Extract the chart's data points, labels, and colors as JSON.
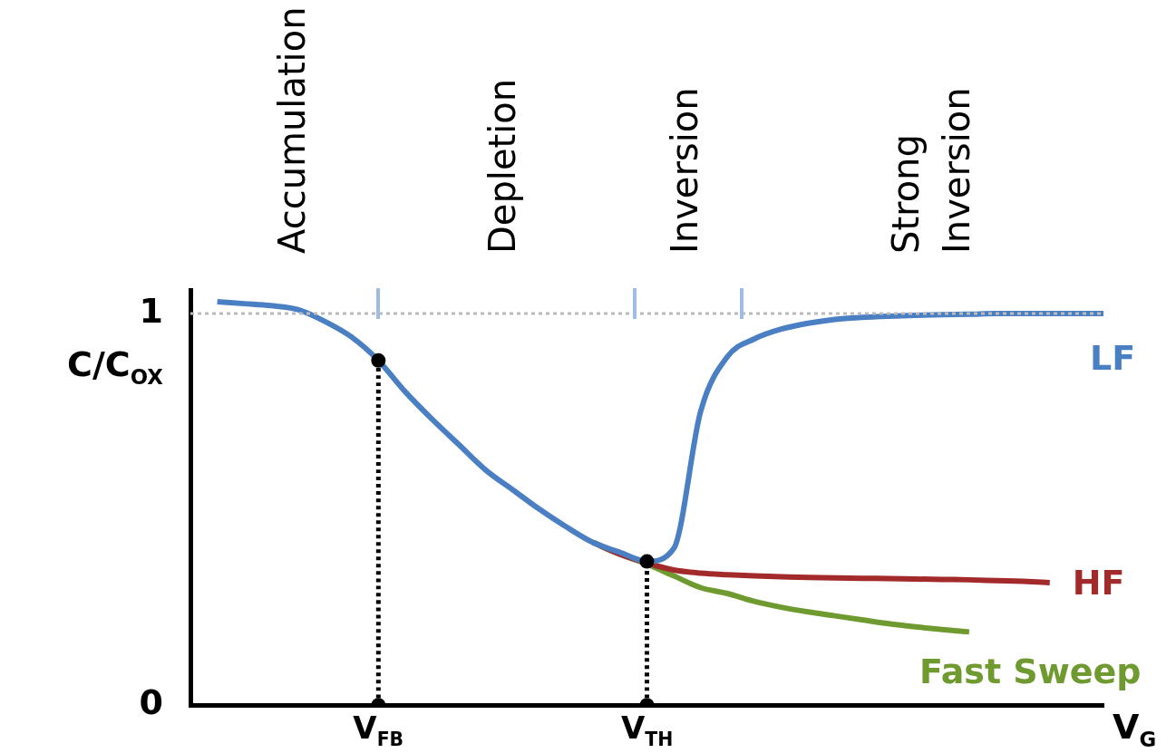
{
  "chart_data": {
    "type": "line",
    "xlabel": "V$_{G}$",
    "ylabel": "C/C$_{OX}$",
    "categories": [
      null,
      null,
      null,
      null,
      null,
      null,
      null,
      "V$_{FB}$",
      null,
      null,
      null,
      null,
      null,
      null,
      null,
      null,
      null,
      "V$_{TH}$",
      null,
      null,
      null,
      null,
      null,
      null,
      null,
      null,
      null,
      null,
      null,
      null,
      null,
      null,
      null,
      null,
      null
    ],
    "ylim": [
      0,
      1.06
    ],
    "yticks": [
      0,
      1
    ],
    "grid": false,
    "legend": false,
    "line_style": "solid",
    "annotations": [
      "Accumulation",
      "Depletion",
      "Inversion",
      "Strong Inversion"
    ],
    "ref_lines": [
      {
        "axis": "y",
        "value": 1,
        "color": "#bbbbbb",
        "line_style": "dotted"
      }
    ],
    "series": [
      {
        "name": "LF",
        "color": "#4a7fc4",
        "values": [
          null,
          1.03,
          1.025,
          1.02,
          1.01,
          0.98,
          0.94,
          0.88,
          0.8,
          0.73,
          0.665,
          0.6,
          0.55,
          0.5,
          0.455,
          0.415,
          0.39,
          0.367,
          0.4,
          0.75,
          0.89,
          0.935,
          0.96,
          0.975,
          0.985,
          0.99,
          0.993,
          0.995,
          0.997,
          0.998,
          1,
          1,
          1,
          1,
          1
        ]
      },
      {
        "name": "HF",
        "color": "#a32a2a",
        "values": [
          null,
          null,
          null,
          null,
          null,
          null,
          null,
          null,
          null,
          null,
          null,
          null,
          null,
          null,
          null,
          0.415,
          0.385,
          0.363,
          0.345,
          0.337,
          0.333,
          0.33,
          0.328,
          0.326,
          0.325,
          0.324,
          0.323,
          0.322,
          0.321,
          0.32,
          0.318,
          0.316,
          0.313,
          null,
          null
        ]
      },
      {
        "name": "Fast Sweep",
        "color": "#6f9a30",
        "values": [
          null,
          null,
          null,
          null,
          null,
          null,
          null,
          null,
          null,
          null,
          null,
          null,
          null,
          null,
          null,
          0.415,
          0.385,
          0.36,
          0.33,
          0.3,
          0.285,
          0.265,
          0.25,
          0.238,
          0.228,
          0.218,
          0.208,
          0.2,
          0.193,
          0.187,
          null,
          null,
          null,
          null,
          null
        ]
      },
      {
        "type": "line",
        "color": "#000000",
        "line_style": "dotted",
        "x": [
          "V$_{FB}$",
          "V$_{FB}$"
        ],
        "values": [
          0,
          0.88
        ]
      },
      {
        "type": "line",
        "color": "#000000",
        "line_style": "dotted",
        "x": [
          "V$_{TH}$",
          "V$_{TH}$"
        ],
        "values": [
          0,
          0.367
        ]
      },
      {
        "type": "scatter",
        "color": "#000000",
        "marker": "circle",
        "x": [
          "V$_{FB}$",
          "V$_{TH}$",
          "V$_{FB}$",
          "V$_{TH}$"
        ],
        "values": [
          0.88,
          0.367,
          0,
          0
        ]
      }
    ]
  }
}
